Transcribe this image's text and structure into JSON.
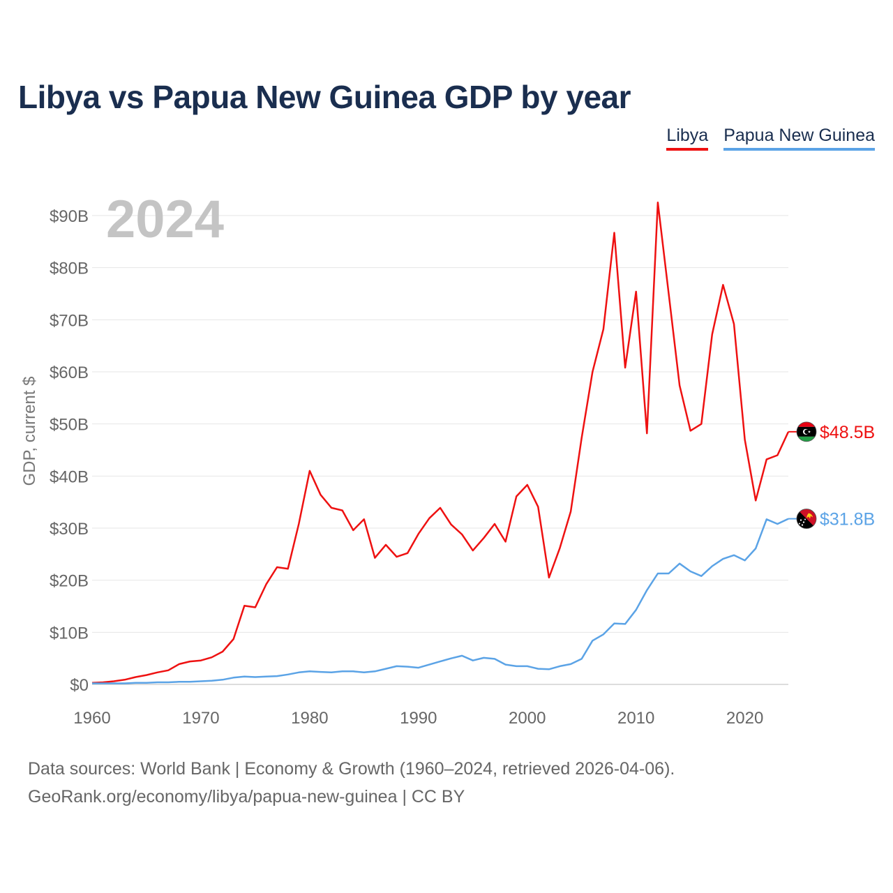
{
  "title": "Libya vs Papua New Guinea GDP by year",
  "legend": [
    {
      "label": "Libya",
      "color": "#ee1111"
    },
    {
      "label": "Papua New Guinea",
      "color": "#5ba3e6"
    }
  ],
  "footer": {
    "line1": "Data sources: World Bank | Economy & Growth (1960–2024, retrieved 2026-04-06).",
    "line2": "GeoRank.org/economy/libya/papua-new-guinea | CC BY"
  },
  "chart_data": {
    "type": "line",
    "title": "Libya vs Papua New Guinea GDP by year",
    "year_label": "2024",
    "xlabel": "",
    "ylabel": "GDP, current $",
    "xlim": [
      1960,
      2024
    ],
    "ylim": [
      0,
      95
    ],
    "units": "billions USD",
    "x_ticks": [
      1960,
      1970,
      1980,
      1990,
      2000,
      2010,
      2020
    ],
    "x_tick_labels": [
      "1960",
      "1970",
      "1980",
      "1990",
      "2000",
      "2010",
      "2020"
    ],
    "y_ticks": [
      0,
      10,
      20,
      30,
      40,
      50,
      60,
      70,
      80,
      90
    ],
    "y_tick_labels": [
      "$0",
      "$10B",
      "$20B",
      "$30B",
      "$40B",
      "$50B",
      "$60B",
      "$70B",
      "$80B",
      "$90B"
    ],
    "grid": true,
    "x": [
      1960,
      1961,
      1962,
      1963,
      1964,
      1965,
      1966,
      1967,
      1968,
      1969,
      1970,
      1971,
      1972,
      1973,
      1974,
      1975,
      1976,
      1977,
      1978,
      1979,
      1980,
      1981,
      1982,
      1983,
      1984,
      1985,
      1986,
      1987,
      1988,
      1989,
      1990,
      1991,
      1992,
      1993,
      1994,
      1995,
      1996,
      1997,
      1998,
      1999,
      2000,
      2001,
      2002,
      2003,
      2004,
      2005,
      2006,
      2007,
      2008,
      2009,
      2010,
      2011,
      2012,
      2013,
      2014,
      2015,
      2016,
      2017,
      2018,
      2019,
      2020,
      2021,
      2022,
      2023,
      2024
    ],
    "series": [
      {
        "name": "Libya",
        "color": "#ee1111",
        "end_label": "$48.5B",
        "values": [
          0.3,
          0.4,
          0.6,
          0.9,
          1.4,
          1.8,
          2.3,
          2.7,
          3.9,
          4.4,
          4.6,
          5.2,
          6.3,
          8.7,
          15.1,
          14.8,
          19.2,
          22.5,
          22.2,
          30.8,
          41.0,
          36.4,
          33.9,
          33.4,
          29.6,
          31.7,
          24.3,
          26.8,
          24.5,
          25.2,
          28.9,
          31.9,
          33.9,
          30.7,
          28.8,
          25.7,
          28.1,
          30.8,
          27.4,
          36.1,
          38.3,
          34.1,
          20.5,
          26.2,
          33.2,
          47.3,
          60.0,
          68.2,
          86.7,
          60.8,
          75.4,
          48.2,
          92.5,
          75.0,
          57.4,
          48.7,
          50.0,
          67.2,
          76.7,
          69.2,
          47.0,
          35.3,
          43.2,
          44.0,
          48.5
        ]
      },
      {
        "name": "Papua New Guinea",
        "color": "#5ba3e6",
        "end_label": "$31.8B",
        "values": [
          0.2,
          0.2,
          0.2,
          0.2,
          0.3,
          0.3,
          0.4,
          0.4,
          0.5,
          0.5,
          0.6,
          0.7,
          0.9,
          1.3,
          1.5,
          1.4,
          1.5,
          1.6,
          1.9,
          2.3,
          2.5,
          2.4,
          2.3,
          2.5,
          2.5,
          2.3,
          2.5,
          3.0,
          3.5,
          3.4,
          3.2,
          3.8,
          4.4,
          5.0,
          5.5,
          4.6,
          5.1,
          4.9,
          3.8,
          3.5,
          3.5,
          3.0,
          2.9,
          3.5,
          3.9,
          4.9,
          8.4,
          9.6,
          11.7,
          11.6,
          14.3,
          18.1,
          21.3,
          21.3,
          23.2,
          21.7,
          20.8,
          22.7,
          24.1,
          24.8,
          23.8,
          26.1,
          31.7,
          30.8,
          31.8
        ]
      }
    ]
  }
}
